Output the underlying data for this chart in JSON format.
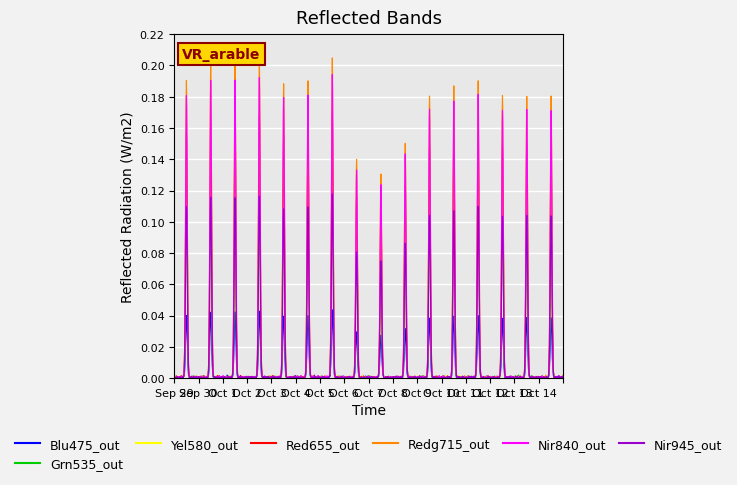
{
  "title": "Reflected Bands",
  "xlabel": "Time",
  "ylabel": "Reflected Radiation (W/m2)",
  "ylim": [
    0,
    0.22
  ],
  "annotation_text": "VR_arable",
  "annotation_box_color": "#FFD700",
  "annotation_text_color": "#8B0000",
  "background_color": "#E8E8E8",
  "grid_color": "white",
  "series": [
    {
      "name": "Blu475_out",
      "color": "#0000FF",
      "scale": 0.042
    },
    {
      "name": "Grn535_out",
      "color": "#00CC00",
      "scale": 0.11
    },
    {
      "name": "Yel580_out",
      "color": "#FFFF00",
      "scale": 0.12
    },
    {
      "name": "Red655_out",
      "color": "#FF0000",
      "scale": 0.165
    },
    {
      "name": "Redg715_out",
      "color": "#FF8800",
      "scale": 0.2
    },
    {
      "name": "Nir840_out",
      "color": "#FF00FF",
      "scale": 0.19
    },
    {
      "name": "Nir945_out",
      "color": "#9900CC",
      "scale": 0.115
    }
  ],
  "xtick_labels": [
    "Sep 29",
    "Sep 30",
    "Oct 1",
    "Oct 2",
    "Oct 3",
    "Oct 4",
    "Oct 5",
    "Oct 6",
    "Oct 7",
    "Oct 8",
    "Oct 9",
    "Oct 10",
    "Oct 11",
    "Oct 12",
    "Oct 13",
    "Oct 14",
    ""
  ],
  "n_days": 16,
  "points_per_day": 96,
  "day_mods": [
    0.95,
    1.0,
    1.0,
    1.01,
    0.94,
    0.95,
    1.02,
    0.7,
    0.65,
    0.75,
    0.9,
    0.93,
    0.95,
    0.9,
    0.9,
    0.9
  ],
  "title_fontsize": 13,
  "label_fontsize": 10,
  "tick_fontsize": 8,
  "legend_fontsize": 9
}
